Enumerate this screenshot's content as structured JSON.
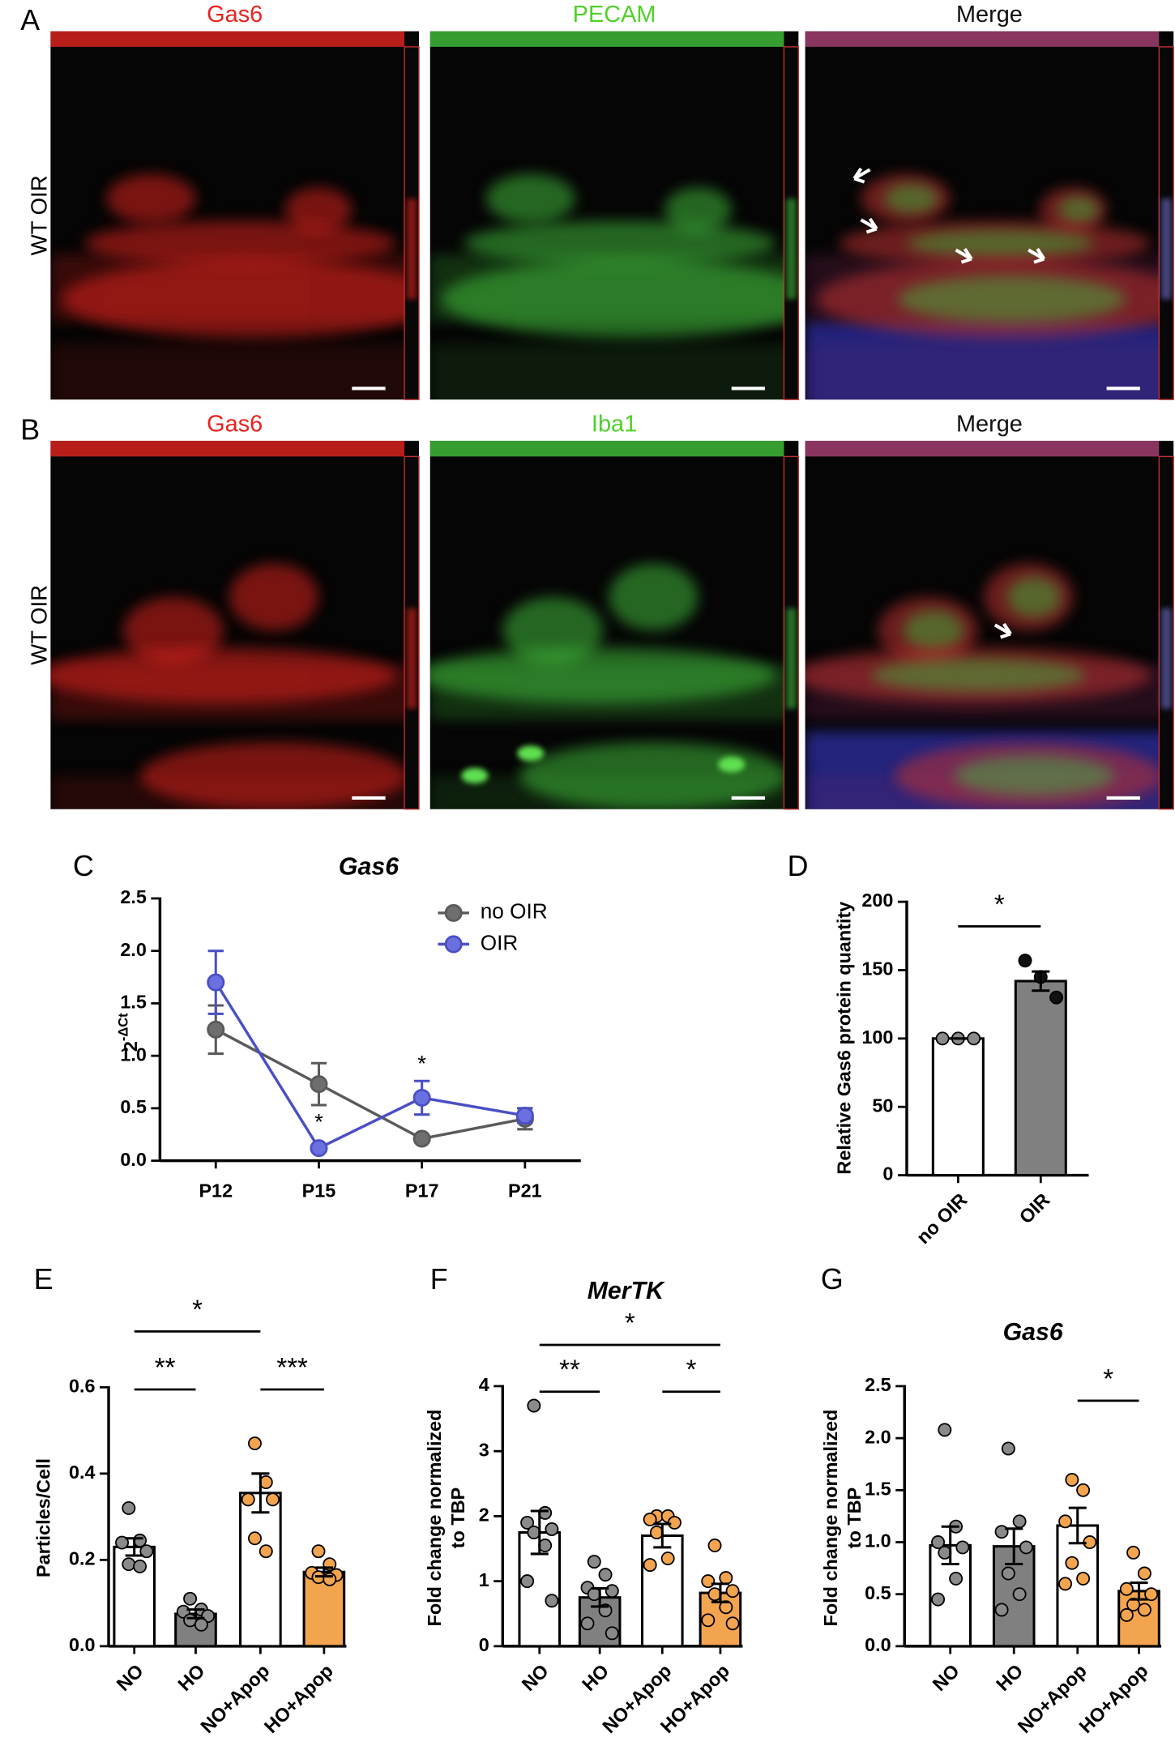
{
  "images": {
    "rows": [
      {
        "panel": "A",
        "label": "WT OIR",
        "titles": [
          {
            "text": "Gas6",
            "color": "#e8231f"
          },
          {
            "text": "PECAM",
            "color": "#4fd12a"
          },
          {
            "text": "Merge",
            "color": "#111111"
          }
        ]
      },
      {
        "panel": "B",
        "label": "WT OIR",
        "titles": [
          {
            "text": "Gas6",
            "color": "#e8231f"
          },
          {
            "text": "Iba1",
            "color": "#4fd12a"
          },
          {
            "text": "Merge",
            "color": "#111111"
          }
        ]
      }
    ]
  },
  "chart_data": [
    {
      "type": "line",
      "panel": "C",
      "title": "Gas6",
      "y_label": {
        "base": "2",
        "exponent": "-ΔCt"
      },
      "categories": [
        "P12",
        "P15",
        "P17",
        "P21"
      ],
      "ylim": [
        0,
        2.5
      ],
      "yticks": [
        {
          "value": 0,
          "label": "0.0"
        },
        0.5,
        {
          "value": 1,
          "label": "1.0"
        },
        1.5,
        {
          "value": 2,
          "label": "2.0"
        },
        2.5
      ],
      "series": [
        {
          "name": "no OIR",
          "color": "#5a5a5a",
          "values": [
            1.25,
            0.73,
            0.21,
            0.4
          ],
          "errors": [
            0.23,
            0.2,
            0.02,
            0.1
          ]
        },
        {
          "name": "OIR",
          "color": "#4a4fc4",
          "values": [
            1.7,
            0.12,
            0.6,
            0.43
          ],
          "errors": [
            0.3,
            0.02,
            0.16,
            0.07
          ]
        }
      ],
      "annotations": [
        {
          "category": "P15",
          "series": "OIR",
          "text": "*",
          "position": "below"
        },
        {
          "category": "P17",
          "series": "OIR",
          "text": "*",
          "position": "above"
        }
      ]
    },
    {
      "type": "bar",
      "panel": "D",
      "y_label": [
        "Relative Gas6 protein quantity"
      ],
      "categories": [
        "no OIR",
        "OIR"
      ],
      "values": [
        100,
        142
      ],
      "errors": [
        0,
        7
      ],
      "colors": [
        "#ffffff",
        "#808080"
      ],
      "point_colors": [
        "#8a8a8a",
        "#111111"
      ],
      "points": [
        [
          100,
          100,
          100
        ],
        [
          157,
          145,
          130
        ]
      ],
      "ylim": [
        0,
        200
      ],
      "yticks": [
        0,
        50,
        100,
        150,
        200
      ],
      "significance": [
        {
          "between": [
            "no OIR",
            "OIR"
          ],
          "label": "*"
        }
      ]
    },
    {
      "type": "bar",
      "panel": "E",
      "y_label": [
        "Particles/Cell"
      ],
      "categories": [
        "NO",
        "HO",
        "NO+Apop",
        "HO+Apop"
      ],
      "values": [
        0.23,
        0.075,
        0.355,
        0.172
      ],
      "errors": [
        0.02,
        0.01,
        0.045,
        0.01
      ],
      "colors": [
        "#ffffff",
        "#808080",
        "#ffffff",
        "#f2a44e"
      ],
      "point_colors": [
        "#8a8a8a",
        "#8a8a8a",
        "#f2a44e",
        "#f2a44e"
      ],
      "points": [
        [
          0.32,
          0.245,
          0.24,
          0.22,
          0.19,
          0.185
        ],
        [
          0.11,
          0.085,
          0.08,
          0.07,
          0.06,
          0.05
        ],
        [
          0.47,
          0.38,
          0.34,
          0.34,
          0.25,
          0.22
        ],
        [
          0.22,
          0.19,
          0.17,
          0.165,
          0.16,
          0.155
        ]
      ],
      "ylim": [
        0,
        0.6
      ],
      "yticks": [
        {
          "value": 0,
          "label": "0.0"
        },
        0.2,
        0.4,
        0.6
      ],
      "significance": [
        {
          "between": [
            "NO",
            "HO"
          ],
          "label": "**"
        },
        {
          "between": [
            "NO+Apop",
            "HO+Apop"
          ],
          "label": "***"
        },
        {
          "between": [
            "NO",
            "NO+Apop"
          ],
          "label": "*"
        }
      ]
    },
    {
      "type": "bar",
      "panel": "F",
      "title": "MerTK",
      "y_label": [
        "Fold change normalized",
        "to TBP"
      ],
      "categories": [
        "NO",
        "HO",
        "NO+Apop",
        "HO+Apop"
      ],
      "values": [
        1.75,
        0.75,
        1.7,
        0.82
      ],
      "errors": [
        0.33,
        0.14,
        0.18,
        0.14
      ],
      "colors": [
        "#ffffff",
        "#808080",
        "#ffffff",
        "#f2a44e"
      ],
      "point_colors": [
        "#8a8a8a",
        "#8a8a8a",
        "#f2a44e",
        "#f2a44e"
      ],
      "points": [
        [
          3.7,
          2.05,
          1.9,
          1.8,
          1.75,
          1.55,
          1.0,
          0.7
        ],
        [
          1.3,
          1.1,
          0.9,
          0.85,
          0.8,
          0.55,
          0.35,
          0.2
        ],
        [
          2.0,
          2.0,
          1.95,
          1.9,
          1.75,
          1.35,
          1.25
        ],
        [
          1.55,
          1.05,
          1.0,
          0.85,
          0.8,
          0.6,
          0.4,
          0.35
        ]
      ],
      "ylim": [
        0,
        4
      ],
      "yticks": [
        0,
        1,
        2,
        3,
        4
      ],
      "significance": [
        {
          "between": [
            "NO",
            "HO"
          ],
          "label": "**"
        },
        {
          "between": [
            "NO+Apop",
            "HO+Apop"
          ],
          "label": "*"
        },
        {
          "between": [
            "NO",
            "HO+Apop"
          ],
          "label": "*"
        }
      ]
    },
    {
      "type": "bar",
      "panel": "G",
      "title": "Gas6",
      "y_label": [
        "Fold change normalized",
        "to TBP"
      ],
      "categories": [
        "NO",
        "HO",
        "NO+Apop",
        "HO+Apop"
      ],
      "values": [
        0.97,
        0.96,
        1.16,
        0.53
      ],
      "errors": [
        0.18,
        0.17,
        0.17,
        0.08
      ],
      "colors": [
        "#ffffff",
        "#808080",
        "#ffffff",
        "#f2a44e"
      ],
      "point_colors": [
        "#8a8a8a",
        "#8a8a8a",
        "#f2a44e",
        "#f2a44e"
      ],
      "points": [
        [
          2.08,
          1.15,
          1.0,
          0.95,
          0.9,
          0.65,
          0.45
        ],
        [
          1.9,
          1.2,
          1.1,
          0.95,
          0.7,
          0.5,
          0.35
        ],
        [
          1.6,
          1.5,
          1.2,
          1.0,
          0.8,
          0.65,
          0.6
        ],
        [
          0.9,
          0.7,
          0.55,
          0.5,
          0.4,
          0.35,
          0.3
        ]
      ],
      "ylim": [
        0,
        2.5
      ],
      "yticks": [
        {
          "value": 0,
          "label": "0.0"
        },
        0.5,
        {
          "value": 1,
          "label": "1.0"
        },
        1.5,
        {
          "value": 2,
          "label": "2.0"
        },
        2.5
      ],
      "significance": [
        {
          "between": [
            "NO+Apop",
            "HO+Apop"
          ],
          "label": "*"
        }
      ]
    }
  ]
}
